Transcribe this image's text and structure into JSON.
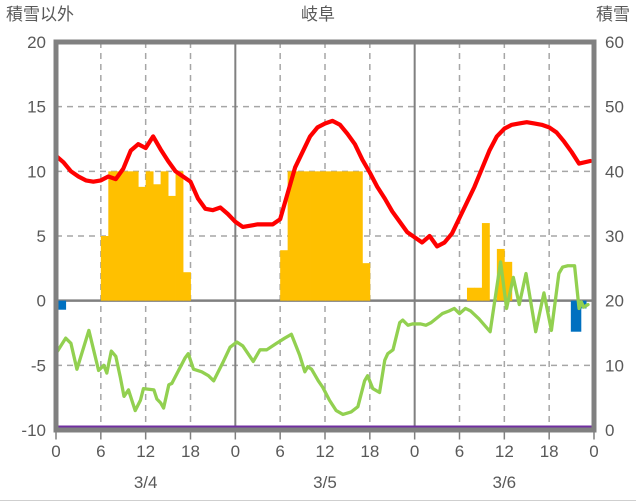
{
  "chart_data": {
    "type": "line+bar",
    "title": "岐阜",
    "left_axis": {
      "label": "積雪以外",
      "min": -10,
      "max": 20,
      "ticks": [
        20,
        15,
        10,
        5,
        0,
        -5,
        -10
      ]
    },
    "right_axis": {
      "label": "積雪",
      "min": 0,
      "max": 60,
      "ticks": [
        60,
        50,
        40,
        30,
        20,
        10,
        0
      ]
    },
    "x_axis": {
      "total_hours": 72,
      "tick_step": 6,
      "hour_labels": [
        "0",
        "6",
        "12",
        "18",
        "0",
        "6",
        "12",
        "18",
        "0",
        "6",
        "12",
        "18",
        "0"
      ],
      "dates": [
        {
          "label": "3/4",
          "center_hour": 12
        },
        {
          "label": "3/5",
          "center_hour": 36
        },
        {
          "label": "3/6",
          "center_hour": 60
        }
      ]
    },
    "grid": {
      "h_dashed": [
        15,
        10,
        5,
        -5
      ],
      "h_solid": [
        0
      ],
      "v_dashed": [
        6,
        12,
        18,
        30,
        36,
        42,
        54,
        60,
        66
      ],
      "v_solid": [
        24,
        48
      ]
    },
    "colors": {
      "red_line": "#FF0000",
      "green_line": "#92D050",
      "orange_bars": "#FFC000",
      "blue_bars": "#0070C0",
      "purple_line": "#7030A0",
      "frame": "#808080",
      "grid_dashed": "#A6A6A6",
      "text": "#595959"
    },
    "series": {
      "red_line": {
        "type": "line",
        "axis": "left",
        "color": "#FF0000",
        "width": 4.2,
        "points": [
          [
            0,
            11.2
          ],
          [
            1,
            10.7
          ],
          [
            2,
            10.0
          ],
          [
            3,
            9.6
          ],
          [
            4,
            9.3
          ],
          [
            5,
            9.2
          ],
          [
            6,
            9.3
          ],
          [
            7,
            9.6
          ],
          [
            8,
            9.4
          ],
          [
            9,
            10.2
          ],
          [
            10,
            11.6
          ],
          [
            11,
            12.1
          ],
          [
            12,
            11.8
          ],
          [
            13,
            12.7
          ],
          [
            14,
            11.7
          ],
          [
            15,
            10.8
          ],
          [
            16,
            10.0
          ],
          [
            17,
            9.6
          ],
          [
            18,
            9.2
          ],
          [
            19,
            7.9
          ],
          [
            20,
            7.1
          ],
          [
            21,
            7.0
          ],
          [
            22,
            7.2
          ],
          [
            23,
            6.7
          ],
          [
            24,
            6.1
          ],
          [
            25,
            5.7
          ],
          [
            26,
            5.8
          ],
          [
            27,
            5.9
          ],
          [
            28,
            5.9
          ],
          [
            29,
            5.9
          ],
          [
            30,
            6.3
          ],
          [
            31,
            8.3
          ],
          [
            32,
            10.3
          ],
          [
            33,
            11.5
          ],
          [
            34,
            12.7
          ],
          [
            35,
            13.4
          ],
          [
            36,
            13.7
          ],
          [
            37,
            13.9
          ],
          [
            38,
            13.6
          ],
          [
            39,
            12.9
          ],
          [
            40,
            12.1
          ],
          [
            41,
            10.9
          ],
          [
            42,
            9.9
          ],
          [
            43,
            8.8
          ],
          [
            44,
            7.9
          ],
          [
            45,
            6.9
          ],
          [
            46,
            6.1
          ],
          [
            47,
            5.3
          ],
          [
            48,
            4.9
          ],
          [
            49,
            4.5
          ],
          [
            50,
            5.0
          ],
          [
            51,
            4.2
          ],
          [
            52,
            4.5
          ],
          [
            53,
            5.2
          ],
          [
            54,
            6.4
          ],
          [
            55,
            7.6
          ],
          [
            56,
            8.8
          ],
          [
            57,
            10.2
          ],
          [
            58,
            11.6
          ],
          [
            59,
            12.7
          ],
          [
            60,
            13.3
          ],
          [
            61,
            13.6
          ],
          [
            62,
            13.7
          ],
          [
            63,
            13.8
          ],
          [
            64,
            13.7
          ],
          [
            65,
            13.6
          ],
          [
            66,
            13.4
          ],
          [
            67,
            13.0
          ],
          [
            68,
            12.3
          ],
          [
            69,
            11.5
          ],
          [
            70,
            10.6
          ],
          [
            71.5,
            10.8
          ]
        ]
      },
      "green_line": {
        "type": "line",
        "axis": "left",
        "color": "#92D050",
        "width": 3.3,
        "points": [
          [
            0.2,
            -3.9
          ],
          [
            1.3,
            -2.9
          ],
          [
            2,
            -3.3
          ],
          [
            2.8,
            -5.3
          ],
          [
            4.4,
            -2.3
          ],
          [
            5.7,
            -5.4
          ],
          [
            6.4,
            -5.0
          ],
          [
            6.8,
            -5.6
          ],
          [
            7.4,
            -3.9
          ],
          [
            8,
            -4.3
          ],
          [
            8.6,
            -5.9
          ],
          [
            9.1,
            -7.4
          ],
          [
            9.7,
            -6.9
          ],
          [
            10.6,
            -8.5
          ],
          [
            11.3,
            -7.7
          ],
          [
            11.7,
            -6.8
          ],
          [
            13.1,
            -6.9
          ],
          [
            13.5,
            -7.6
          ],
          [
            14,
            -7.9
          ],
          [
            14.4,
            -8.3
          ],
          [
            15.1,
            -6.5
          ],
          [
            15.5,
            -6.4
          ],
          [
            17.3,
            -4.4
          ],
          [
            17.7,
            -4.1
          ],
          [
            18.4,
            -5.3
          ],
          [
            19.5,
            -5.5
          ],
          [
            20.4,
            -5.8
          ],
          [
            21.1,
            -6.2
          ],
          [
            22.4,
            -4.7
          ],
          [
            23.3,
            -3.6
          ],
          [
            24.2,
            -3.2
          ],
          [
            25,
            -3.5
          ],
          [
            26.4,
            -4.7
          ],
          [
            27.3,
            -3.8
          ],
          [
            28.2,
            -3.8
          ],
          [
            29.5,
            -3.3
          ],
          [
            30.6,
            -2.9
          ],
          [
            31.5,
            -2.6
          ],
          [
            32.6,
            -4.2
          ],
          [
            33.3,
            -5.5
          ],
          [
            33.7,
            -5.1
          ],
          [
            34.2,
            -5.3
          ],
          [
            35.1,
            -6.2
          ],
          [
            35.7,
            -6.7
          ],
          [
            36.6,
            -7.7
          ],
          [
            37.5,
            -8.5
          ],
          [
            38.4,
            -8.8
          ],
          [
            39.5,
            -8.6
          ],
          [
            40.4,
            -8.2
          ],
          [
            41.3,
            -6.2
          ],
          [
            41.7,
            -5.8
          ],
          [
            42.4,
            -6.8
          ],
          [
            43.3,
            -7.1
          ],
          [
            44,
            -4.6
          ],
          [
            44.4,
            -4.1
          ],
          [
            45.1,
            -3.8
          ],
          [
            46,
            -1.7
          ],
          [
            46.4,
            -1.5
          ],
          [
            47.1,
            -1.9
          ],
          [
            47.7,
            -1.8
          ],
          [
            48.8,
            -1.8
          ],
          [
            49.5,
            -1.9
          ],
          [
            50.2,
            -1.7
          ],
          [
            51.7,
            -1.0
          ],
          [
            52.6,
            -0.8
          ],
          [
            53.3,
            -0.6
          ],
          [
            54,
            -1.0
          ],
          [
            54.8,
            -0.6
          ],
          [
            55.5,
            -0.8
          ],
          [
            56.6,
            -1.4
          ],
          [
            58.1,
            -2.4
          ],
          [
            59.5,
            3.0
          ],
          [
            60.3,
            -0.6
          ],
          [
            61.2,
            1.8
          ],
          [
            62,
            -0.3
          ],
          [
            62.9,
            2.1
          ],
          [
            64.2,
            -2.4
          ],
          [
            65.3,
            0.6
          ],
          [
            66.3,
            -2.3
          ],
          [
            67.3,
            2.1
          ],
          [
            67.8,
            2.6
          ],
          [
            68.5,
            2.7
          ],
          [
            69.4,
            2.7
          ],
          [
            70,
            -0.6
          ],
          [
            70.3,
            -0.1
          ],
          [
            70.6,
            -0.5
          ],
          [
            71.2,
            -0.3
          ]
        ]
      },
      "orange_bars": {
        "type": "bar-up",
        "axis": "left",
        "color": "#FFC000",
        "base": 0,
        "bar_width_hours": 1,
        "bars": [
          [
            6,
            5
          ],
          [
            7,
            10
          ],
          [
            8,
            10
          ],
          [
            9,
            10
          ],
          [
            10,
            10
          ],
          [
            11,
            8.8
          ],
          [
            12,
            10
          ],
          [
            13,
            9
          ],
          [
            14,
            10
          ],
          [
            15,
            8.1
          ],
          [
            16,
            10
          ],
          [
            17,
            2.2
          ],
          [
            30,
            3.9
          ],
          [
            31,
            10
          ],
          [
            32,
            10
          ],
          [
            33,
            10
          ],
          [
            34,
            10
          ],
          [
            35,
            10
          ],
          [
            36,
            10
          ],
          [
            37,
            10
          ],
          [
            38,
            10
          ],
          [
            39,
            10
          ],
          [
            40,
            10
          ],
          [
            41,
            2.9
          ],
          [
            55,
            1
          ],
          [
            56,
            1
          ],
          [
            57,
            6
          ],
          [
            59,
            4
          ],
          [
            60,
            3
          ]
        ]
      },
      "blue_bars": {
        "type": "bar-down",
        "axis": "left",
        "color": "#0070C0",
        "base": 0,
        "bars": [
          [
            0.2,
            0.7,
            1.15
          ],
          [
            68.9,
            2.4,
            1.4
          ],
          [
            70.3,
            0.6,
            0.7
          ]
        ]
      },
      "purple_line": {
        "type": "line",
        "axis": "right",
        "color": "#7030A0",
        "width": 3,
        "points": [
          [
            0.3,
            0
          ],
          [
            72,
            0
          ]
        ]
      }
    }
  }
}
